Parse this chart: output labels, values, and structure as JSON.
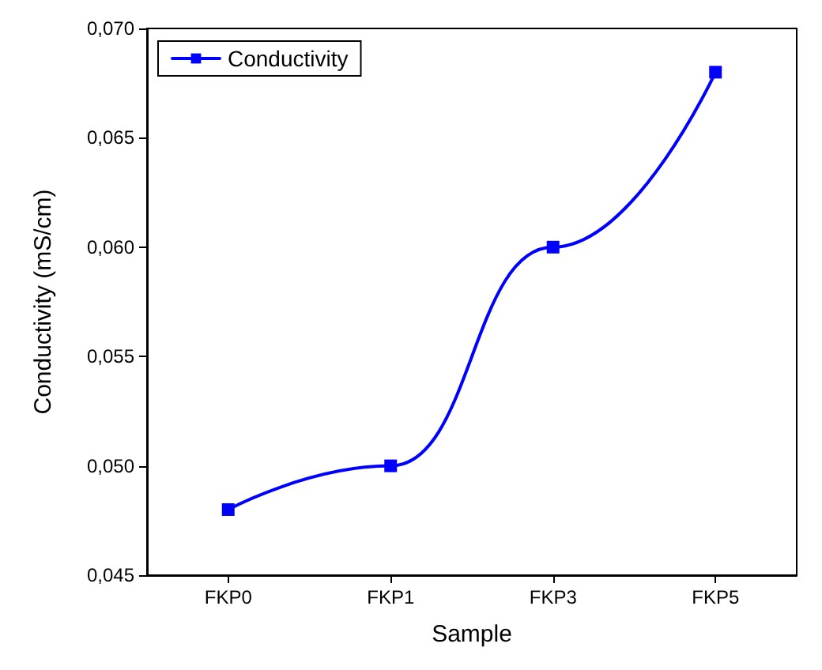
{
  "chart_data": {
    "type": "line",
    "xlabel": "Sample",
    "ylabel": "Conductivity (mS/cm)",
    "categories": [
      "FKP0",
      "FKP1",
      "FKP3",
      "FKP5"
    ],
    "series": [
      {
        "name": "Conductivity",
        "color": "#0000ff",
        "values": [
          0.048,
          0.05,
          0.06,
          0.068
        ]
      }
    ],
    "ylim": [
      0.045,
      0.07
    ],
    "yticks": [
      {
        "value": 0.045,
        "label": "0,045"
      },
      {
        "value": 0.05,
        "label": "0,050"
      },
      {
        "value": 0.055,
        "label": "0,055"
      },
      {
        "value": 0.06,
        "label": "0,060"
      },
      {
        "value": 0.065,
        "label": "0,065"
      },
      {
        "value": 0.07,
        "label": "0,070"
      }
    ],
    "grid": false,
    "legend": "top left",
    "marker": "square",
    "line_style": "solid"
  }
}
